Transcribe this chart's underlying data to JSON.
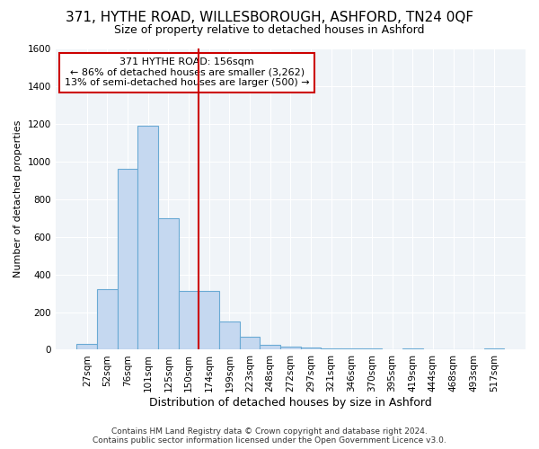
{
  "title1": "371, HYTHE ROAD, WILLESBOROUGH, ASHFORD, TN24 0QF",
  "title2": "Size of property relative to detached houses in Ashford",
  "xlabel": "Distribution of detached houses by size in Ashford",
  "ylabel": "Number of detached properties",
  "categories": [
    "27sqm",
    "52sqm",
    "76sqm",
    "101sqm",
    "125sqm",
    "150sqm",
    "174sqm",
    "199sqm",
    "223sqm",
    "248sqm",
    "272sqm",
    "297sqm",
    "321sqm",
    "346sqm",
    "370sqm",
    "395sqm",
    "419sqm",
    "444sqm",
    "468sqm",
    "493sqm",
    "517sqm"
  ],
  "values": [
    30,
    320,
    960,
    1190,
    700,
    310,
    310,
    150,
    70,
    25,
    15,
    10,
    5,
    5,
    5,
    0,
    8,
    0,
    0,
    0,
    5
  ],
  "bar_color": "#c5d8f0",
  "bar_edge_color": "#6aaad4",
  "vline_position": 5.5,
  "annotation_title": "371 HYTHE ROAD: 156sqm",
  "annotation_line1": "← 86% of detached houses are smaller (3,262)",
  "annotation_line2": "13% of semi-detached houses are larger (500) →",
  "ylim": [
    0,
    1600
  ],
  "yticks": [
    0,
    200,
    400,
    600,
    800,
    1000,
    1200,
    1400,
    1600
  ],
  "footer1": "Contains HM Land Registry data © Crown copyright and database right 2024.",
  "footer2": "Contains public sector information licensed under the Open Government Licence v3.0.",
  "bg_color": "#ffffff",
  "plot_bg_color": "#f0f4f8",
  "grid_color": "#ffffff",
  "annotation_box_color": "#ffffff",
  "annotation_box_edge": "#cc0000",
  "vline_color": "#cc0000",
  "title1_fontsize": 11,
  "title2_fontsize": 9,
  "xlabel_fontsize": 9,
  "ylabel_fontsize": 8,
  "tick_fontsize": 7.5,
  "annot_fontsize": 8,
  "footer_fontsize": 6.5
}
